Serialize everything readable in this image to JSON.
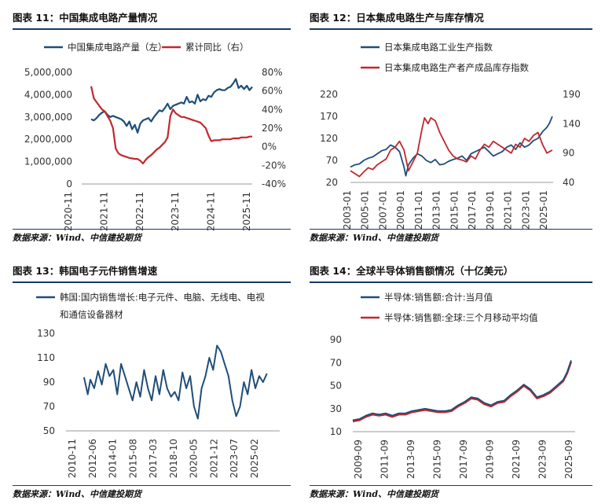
{
  "panels": [
    {
      "title": "图表 11：中国集成电路产量情况",
      "source": "数据来源：Wind、中信建投期货",
      "chart_data": {
        "type": "line",
        "dual_axis": true,
        "series": [
          {
            "name": "中国集成电路产量（左）",
            "axis": "left",
            "color": "#1f4e79",
            "x": [
              0,
              1,
              2,
              3,
              4,
              5,
              6,
              7,
              8,
              9,
              10,
              11,
              12,
              13,
              14,
              15,
              16,
              17,
              18,
              19,
              20,
              21,
              22,
              23,
              24,
              25,
              26,
              27,
              28,
              29,
              30,
              31,
              32,
              33,
              34,
              35,
              36,
              37,
              38,
              39,
              40,
              41,
              42,
              43,
              44,
              45,
              46,
              47,
              48,
              49,
              50,
              51,
              52,
              53,
              54,
              55,
              56,
              57,
              58,
              59
            ],
            "values": [
              2900000,
              2850000,
              2950000,
              3100000,
              3200000,
              3250000,
              3100000,
              3000000,
              3050000,
              3000000,
              2950000,
              2900000,
              2800000,
              2600000,
              2800000,
              2450000,
              2650000,
              2300000,
              2700000,
              2850000,
              2900000,
              2950000,
              2800000,
              3000000,
              3150000,
              3300000,
              3250000,
              3400000,
              3600000,
              3350000,
              3500000,
              3550000,
              3600000,
              3650000,
              3600000,
              3900000,
              3650000,
              3700000,
              3600000,
              4000000,
              3700000,
              3800000,
              3750000,
              3950000,
              3900000,
              4100000,
              4200000,
              4250000,
              4200000,
              4200000,
              4300000,
              4350000,
              4500000,
              4700000,
              4300000,
              4400000,
              4250000,
              4400000,
              4200000,
              4350000
            ]
          },
          {
            "name": "累计同比（右）",
            "axis": "right",
            "color": "#c0282d",
            "x": [
              0,
              1,
              2,
              3,
              4,
              5,
              6,
              7,
              8,
              9,
              10,
              11,
              12,
              13,
              14,
              15,
              16,
              17,
              18,
              19,
              20,
              21,
              22,
              23,
              24,
              25,
              26,
              27,
              28,
              29,
              30,
              31,
              32,
              33,
              34,
              35,
              36,
              37,
              38,
              39,
              40,
              41,
              42,
              43,
              44,
              45,
              46,
              47,
              48,
              49,
              50,
              51,
              52,
              53,
              54,
              55,
              56,
              57,
              58,
              59
            ],
            "values": [
              65,
              52,
              48,
              44,
              40,
              38,
              33,
              28,
              20,
              -2,
              -7,
              -9,
              -10,
              -11,
              -12,
              -12.5,
              -13,
              -13,
              -15,
              -18,
              -14,
              -11,
              -9,
              -6,
              -3,
              -1,
              2,
              5,
              10,
              33,
              40,
              36,
              34,
              32,
              32,
              31,
              30,
              29,
              28,
              27,
              26,
              23,
              20,
              12,
              6,
              7,
              7,
              7,
              8,
              8,
              8,
              8,
              9,
              9,
              9,
              10,
              10,
              10,
              11,
              11
            ]
          }
        ],
        "x_ticks": [
          "2020-11",
          "2021-11",
          "2022-11",
          "2023-11",
          "2024-11",
          "2025-11"
        ],
        "ylim_left": [
          0,
          5000000
        ],
        "y_ticks_left": [
          "0",
          "1,000,000",
          "2,000,000",
          "3,000,000",
          "4,000,000",
          "5,000,000"
        ],
        "ylim_right": [
          -40,
          80
        ],
        "y_ticks_right": [
          "-40%",
          "-20%",
          "0%",
          "20%",
          "40%",
          "60%",
          "80%"
        ],
        "legend_position": "top"
      }
    },
    {
      "title": "图表 12：日本集成电路生产与库存情况",
      "source": "数据来源：Wind、中信建投期货",
      "chart_data": {
        "type": "line",
        "dual_axis": true,
        "series": [
          {
            "name": "日本集成电路工业生产指数",
            "axis": "left",
            "color": "#1f4e79",
            "x": [
              2003,
              2003.5,
              2004,
              2004.5,
              2005,
              2005.5,
              2006,
              2006.5,
              2007,
              2007.5,
              2008,
              2008.5,
              2009,
              2009.2,
              2009.5,
              2010,
              2010.5,
              2011,
              2011.5,
              2012,
              2012.5,
              2013,
              2013.5,
              2014,
              2014.5,
              2015,
              2015.5,
              2016,
              2016.5,
              2017,
              2017.5,
              2018,
              2018.5,
              2019,
              2019.5,
              2020,
              2020.5,
              2021,
              2021.5,
              2022,
              2022.5,
              2023,
              2023.5,
              2024,
              2024.5,
              2025,
              2025.3,
              2025.6
            ],
            "values": [
              55,
              60,
              62,
              70,
              75,
              78,
              85,
              92,
              95,
              105,
              100,
              90,
              55,
              35,
              60,
              75,
              85,
              80,
              70,
              65,
              72,
              60,
              62,
              68,
              72,
              75,
              80,
              70,
              85,
              90,
              95,
              100,
              90,
              80,
              85,
              90,
              100,
              105,
              95,
              110,
              100,
              105,
              115,
              120,
              135,
              145,
              155,
              170
            ]
          },
          {
            "name": "日本集成电路生产者产成品库存指数",
            "axis": "right",
            "color": "#c0282d",
            "x": [
              2003,
              2003.5,
              2004,
              2004.5,
              2005,
              2005.5,
              2006,
              2006.5,
              2007,
              2007.5,
              2008,
              2008.5,
              2009,
              2009.5,
              2010,
              2010.5,
              2011,
              2011.3,
              2011.7,
              2012,
              2012.5,
              2013,
              2013.5,
              2014,
              2014.5,
              2015,
              2015.5,
              2016,
              2016.5,
              2017,
              2017.5,
              2018,
              2018.5,
              2019,
              2019.5,
              2020,
              2020.5,
              2021,
              2021.5,
              2022,
              2022.5,
              2023,
              2023.5,
              2024,
              2024.5,
              2025,
              2025.6
            ],
            "values": [
              60,
              55,
              50,
              58,
              65,
              62,
              70,
              75,
              80,
              95,
              100,
              110,
              95,
              60,
              75,
              90,
              130,
              150,
              140,
              150,
              145,
              125,
              110,
              95,
              85,
              80,
              78,
              75,
              85,
              80,
              95,
              105,
              100,
              110,
              105,
              100,
              95,
              90,
              105,
              100,
              115,
              110,
              120,
              125,
              105,
              90,
              95
            ]
          }
        ],
        "x_ticks": [
          "2003-01",
          "2005-01",
          "2007-01",
          "2009-01",
          "2011-01",
          "2013-01",
          "2015-01",
          "2017-01",
          "2019-01",
          "2021-01",
          "2023-01",
          "2025-01"
        ],
        "ylim_left": [
          20,
          220
        ],
        "y_ticks_left": [
          "20",
          "70",
          "120",
          "170",
          "220"
        ],
        "ylim_right": [
          40,
          190
        ],
        "y_ticks_right": [
          "40",
          "90",
          "140",
          "190"
        ],
        "legend_position": "top"
      }
    },
    {
      "title": "图表 13：韩国电子元件销售增速",
      "source": "数据来源：Wind、中信建投期货",
      "chart_data": {
        "type": "line",
        "series": [
          {
            "name": "韩国:国内销售增长:电子元件、电脑、无线电、电视和通信设备器材",
            "color": "#1f4e79",
            "x": [
              2011.5,
              2011.8,
              2012.0,
              2012.3,
              2012.6,
              2012.9,
              2013.2,
              2013.5,
              2013.8,
              2014.1,
              2014.4,
              2014.7,
              2015.0,
              2015.3,
              2015.6,
              2015.9,
              2016.2,
              2016.5,
              2016.8,
              2017.1,
              2017.4,
              2017.7,
              2018.0,
              2018.3,
              2018.6,
              2018.9,
              2019.2,
              2019.5,
              2019.8,
              2020.1,
              2020.4,
              2020.7,
              2021.0,
              2021.3,
              2021.6,
              2021.9,
              2022.2,
              2022.5,
              2022.8,
              2023.1,
              2023.4,
              2023.7,
              2024.0,
              2024.3,
              2024.6,
              2024.9,
              2025.2,
              2025.5,
              2025.8
            ],
            "values": [
              94,
              80,
              92,
              85,
              99,
              88,
              105,
              95,
              100,
              80,
              105,
              95,
              85,
              75,
              90,
              78,
              100,
              85,
              75,
              95,
              80,
              100,
              85,
              78,
              82,
              75,
              98,
              85,
              95,
              70,
              60,
              85,
              95,
              110,
              100,
              120,
              115,
              105,
              95,
              75,
              62,
              70,
              90,
              80,
              100,
              85,
              95,
              90,
              97
            ]
          }
        ],
        "x_ticks": [
          "2010-11",
          "2012-06",
          "2014-01",
          "2015-08",
          "2017-03",
          "2018-10",
          "2020-05",
          "2021-12",
          "2023-07",
          "2025-02"
        ],
        "ylim": [
          50,
          130
        ],
        "y_ticks": [
          "50",
          "70",
          "90",
          "110",
          "130"
        ],
        "legend_position": "top"
      }
    },
    {
      "title": "图表 14：全球半导体销售额情况（十亿美元）",
      "source": "数据来源：Wind、中信建投期货",
      "chart_data": {
        "type": "line",
        "series": [
          {
            "name": "半导体:销售额:合计:当月值",
            "color": "#1f4e79",
            "x": [
              2009.0,
              2009.5,
              2010.0,
              2010.5,
              2011.0,
              2011.5,
              2012.0,
              2012.5,
              2013.0,
              2013.5,
              2014.0,
              2014.5,
              2015.0,
              2015.5,
              2016.0,
              2016.5,
              2017.0,
              2017.5,
              2018.0,
              2018.5,
              2019.0,
              2019.5,
              2020.0,
              2020.5,
              2021.0,
              2021.5,
              2022.0,
              2022.5,
              2023.0,
              2023.5,
              2024.0,
              2024.5,
              2025.0,
              2025.3,
              2025.6
            ],
            "values": [
              20,
              21,
              24,
              26,
              25,
              26,
              24,
              26,
              26,
              28,
              29,
              30,
              29,
              28,
              28,
              29,
              33,
              36,
              40,
              39,
              35,
              33,
              36,
              37,
              42,
              46,
              51,
              47,
              40,
              42,
              45,
              50,
              55,
              62,
              72
            ]
          },
          {
            "name": "半导体:销售额:全球:三个月移动平均值",
            "color": "#c0282d",
            "x": [
              2009.0,
              2009.5,
              2010.0,
              2010.5,
              2011.0,
              2011.5,
              2012.0,
              2012.5,
              2013.0,
              2013.5,
              2014.0,
              2014.5,
              2015.0,
              2015.5,
              2016.0,
              2016.5,
              2017.0,
              2017.5,
              2018.0,
              2018.5,
              2019.0,
              2019.5,
              2020.0,
              2020.5,
              2021.0,
              2021.5,
              2022.0,
              2022.5,
              2023.0,
              2023.5,
              2024.0,
              2024.5,
              2025.0,
              2025.3,
              2025.6
            ],
            "values": [
              19,
              20,
              23,
              25,
              24,
              25,
              23,
              25,
              25,
              27,
              28,
              29,
              28,
              27,
              27,
              28,
              32,
              35,
              39,
              38,
              34,
              32,
              35,
              36,
              41,
              45,
              50,
              46,
              39,
              41,
              44,
              49,
              54,
              61,
              71
            ]
          }
        ],
        "x_ticks": [
          "2009-09",
          "2011-09",
          "2013-09",
          "2015-09",
          "2017-09",
          "2019-09",
          "2021-09",
          "2023-09",
          "2025-09"
        ],
        "ylim": [
          10,
          90
        ],
        "y_ticks": [
          "10",
          "30",
          "50",
          "70",
          "90"
        ],
        "legend_position": "top-left"
      }
    }
  ]
}
